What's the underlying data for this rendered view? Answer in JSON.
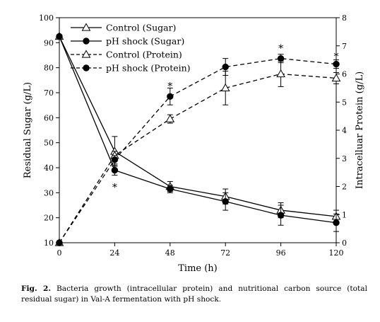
{
  "chart_data": {
    "type": "line",
    "x": [
      0,
      24,
      48,
      72,
      96,
      120
    ],
    "xlabel": "Time (h)",
    "xlim": [
      0,
      120
    ],
    "xticks": [
      0,
      24,
      48,
      72,
      96,
      120
    ],
    "y_left": {
      "label": "Residual Sugar (g/L)",
      "lim": [
        10,
        100
      ],
      "ticks": [
        10,
        20,
        30,
        40,
        50,
        60,
        70,
        80,
        90,
        100
      ]
    },
    "y_right": {
      "label": "Intracelluar Protein (g/L)",
      "lim": [
        0,
        8
      ],
      "ticks": [
        0,
        1,
        2,
        3,
        4,
        5,
        6,
        7,
        8
      ]
    },
    "series": [
      {
        "name": "Control (Sugar)",
        "axis": "left",
        "line": "solid",
        "marker": "open-triangle",
        "values": [
          92.5,
          46.5,
          32.5,
          28.5,
          23,
          20.5
        ],
        "errors": [
          0,
          6,
          2,
          3,
          3,
          2.5
        ]
      },
      {
        "name": "pH shock (Sugar)",
        "axis": "left",
        "line": "solid",
        "marker": "filled-circle",
        "values": [
          92.5,
          39,
          31.5,
          26.5,
          21,
          18
        ],
        "errors": [
          0,
          2,
          1.5,
          3.5,
          4,
          3.5
        ]
      },
      {
        "name": "Control (Protein)",
        "axis": "right",
        "line": "dashed",
        "marker": "open-triangle",
        "values": [
          0,
          3.1,
          4.4,
          5.5,
          6.0,
          5.85
        ],
        "errors": [
          0,
          0.15,
          0.15,
          0.6,
          0.45,
          0.2
        ]
      },
      {
        "name": "pH shock (Protein)",
        "axis": "right",
        "line": "dashed",
        "marker": "filled-circle",
        "values": [
          0,
          2.95,
          5.2,
          6.25,
          6.55,
          6.35
        ],
        "errors": [
          0,
          0.15,
          0.3,
          0.3,
          0.15,
          0.15
        ]
      }
    ],
    "annotations": [
      {
        "text": "*",
        "x": 24,
        "axis": "left",
        "y": 33
      },
      {
        "text": "*",
        "x": 48,
        "axis": "right",
        "y": 5.65
      },
      {
        "text": "*",
        "x": 96,
        "axis": "right",
        "y": 7.0
      },
      {
        "text": "*",
        "x": 120,
        "axis": "right",
        "y": 6.7
      }
    ],
    "legend": "top-left",
    "grid": false
  },
  "caption": {
    "label": "Fig. 2.",
    "text": " Bacteria growth (intracellular protein) and nutritional carbon source (total residual sugar) in Val-A fermentation with pH shock."
  }
}
